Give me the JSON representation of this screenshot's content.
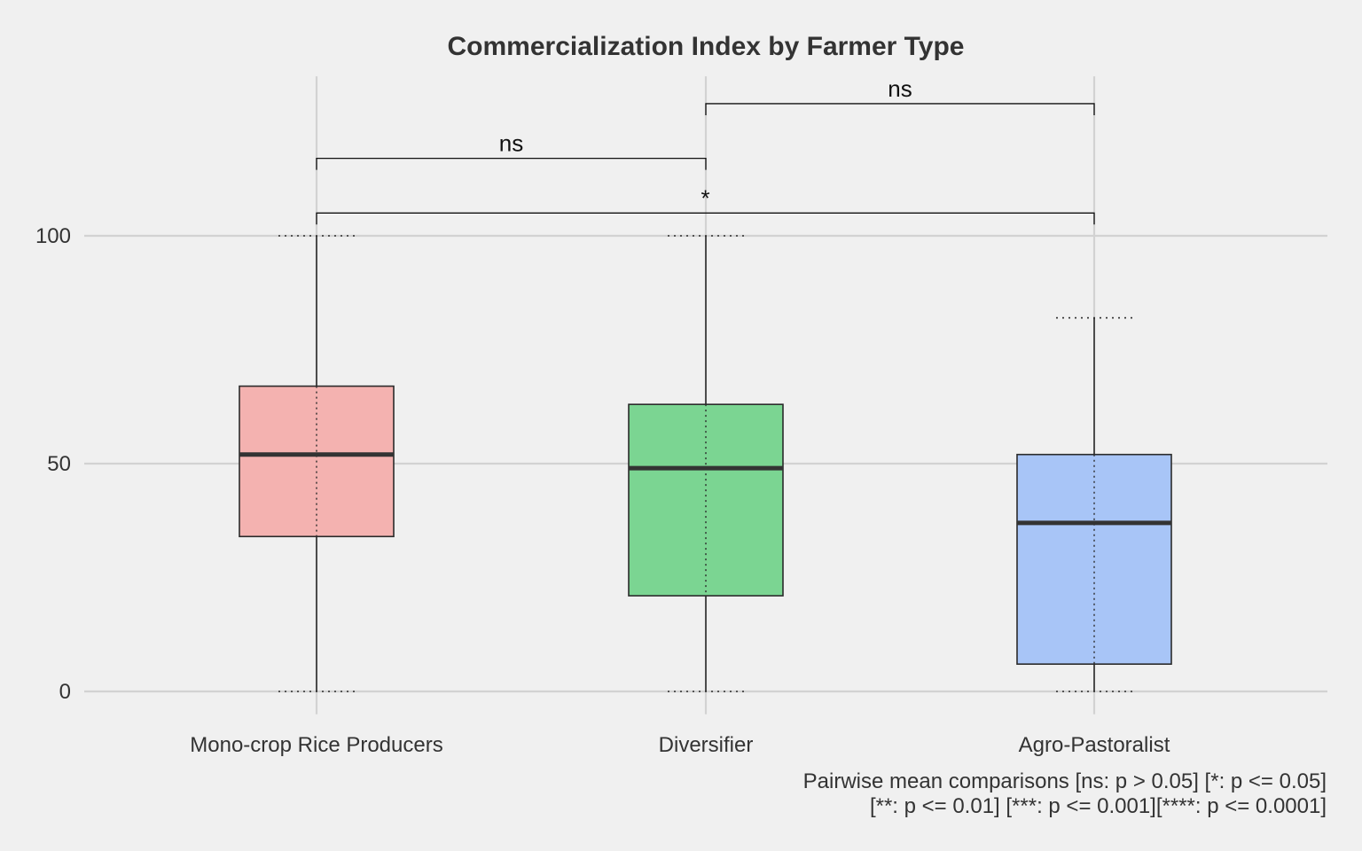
{
  "chart_data": {
    "type": "box",
    "title": "Commercialization Index by Farmer Type",
    "xlabel": "",
    "ylabel": "",
    "ylim": [
      -5,
      135
    ],
    "y_ticks": [
      0,
      50,
      100
    ],
    "grid": true,
    "categories": [
      "Mono-crop Rice Producers",
      "Diversifier",
      "Agro-Pastoralist"
    ],
    "boxes": [
      {
        "category": "Mono-crop Rice Producers",
        "min": 0,
        "q1": 34,
        "median": 52,
        "q3": 67,
        "max": 100,
        "color": "#f4b2b0"
      },
      {
        "category": "Diversifier",
        "min": 0,
        "q1": 21,
        "median": 49,
        "q3": 63,
        "max": 100,
        "color": "#7bd592"
      },
      {
        "category": "Agro-Pastoralist",
        "min": 0,
        "q1": 6,
        "median": 37,
        "q3": 52,
        "max": 82,
        "color": "#a8c5f7"
      }
    ],
    "comparisons": [
      {
        "from": 0,
        "to": 1,
        "y": 117,
        "label": "ns"
      },
      {
        "from": 1,
        "to": 2,
        "y": 129,
        "label": "ns"
      },
      {
        "from": 0,
        "to": 2,
        "y": 105,
        "label": "*"
      }
    ],
    "caption": [
      "Pairwise mean comparisons [ns: p > 0.05] [*: p <= 0.05]",
      "[**: p <= 0.01] [***: p <= 0.001][****: p <= 0.0001]"
    ]
  }
}
